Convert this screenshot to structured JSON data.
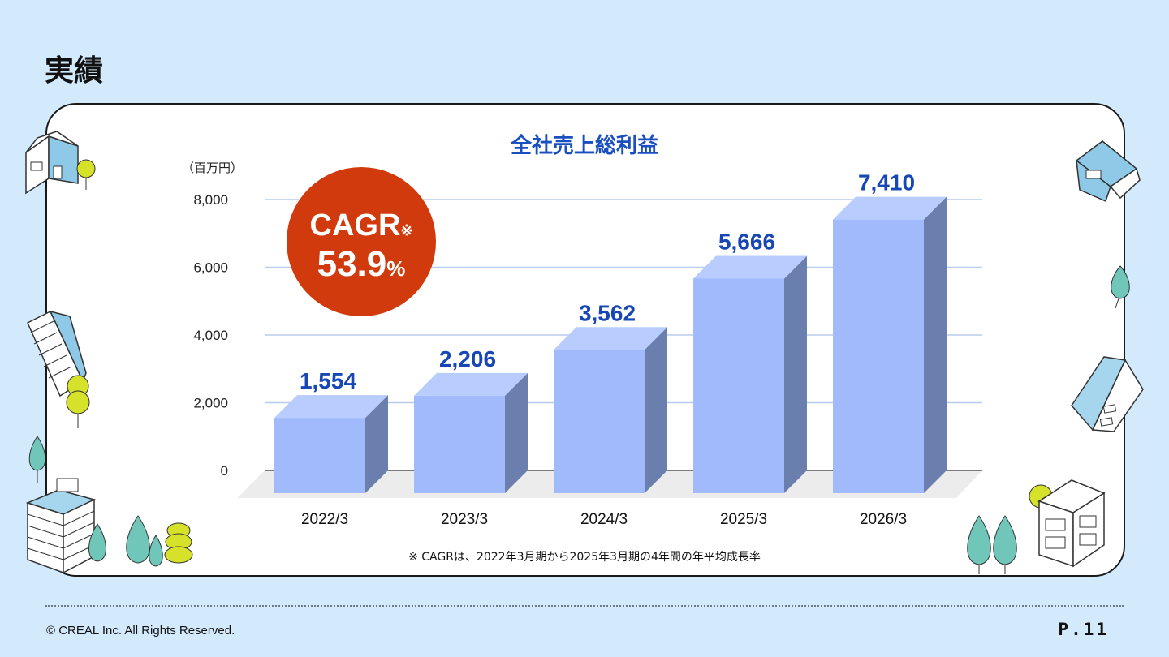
{
  "page": {
    "title": "実績",
    "copyright": "© CREAL Inc. All Rights Reserved.",
    "page_number": "P.11"
  },
  "badge": {
    "label": "CAGR",
    "label_mark": "※",
    "value": "53.9",
    "unit": "%",
    "color": "#d13a0c"
  },
  "colors": {
    "bar_front": "#a1bafc",
    "bar_top": "#b8cdfd",
    "bar_side": "#6b7fae",
    "value_label": "#1746b5",
    "title": "#1a4fc0",
    "grid": "#b8ccee"
  },
  "chart_data": {
    "type": "bar",
    "title": "全社売上総利益",
    "unit_label": "（百万円）",
    "categories": [
      "2022/3",
      "2023/3",
      "2024/3",
      "2025/3",
      "2026/3"
    ],
    "values": [
      1554,
      2206,
      3562,
      5666,
      7410
    ],
    "value_labels": [
      "1,554",
      "2,206",
      "3,562",
      "5,666",
      "7,410"
    ],
    "yticks": [
      "0",
      "2,000",
      "4,000",
      "6,000",
      "8,000"
    ],
    "ylim": [
      0,
      8000
    ],
    "grid": true,
    "footnote": "※ CAGRは、2022年3月期から2025年3月期の4年間の年平均成長率"
  }
}
